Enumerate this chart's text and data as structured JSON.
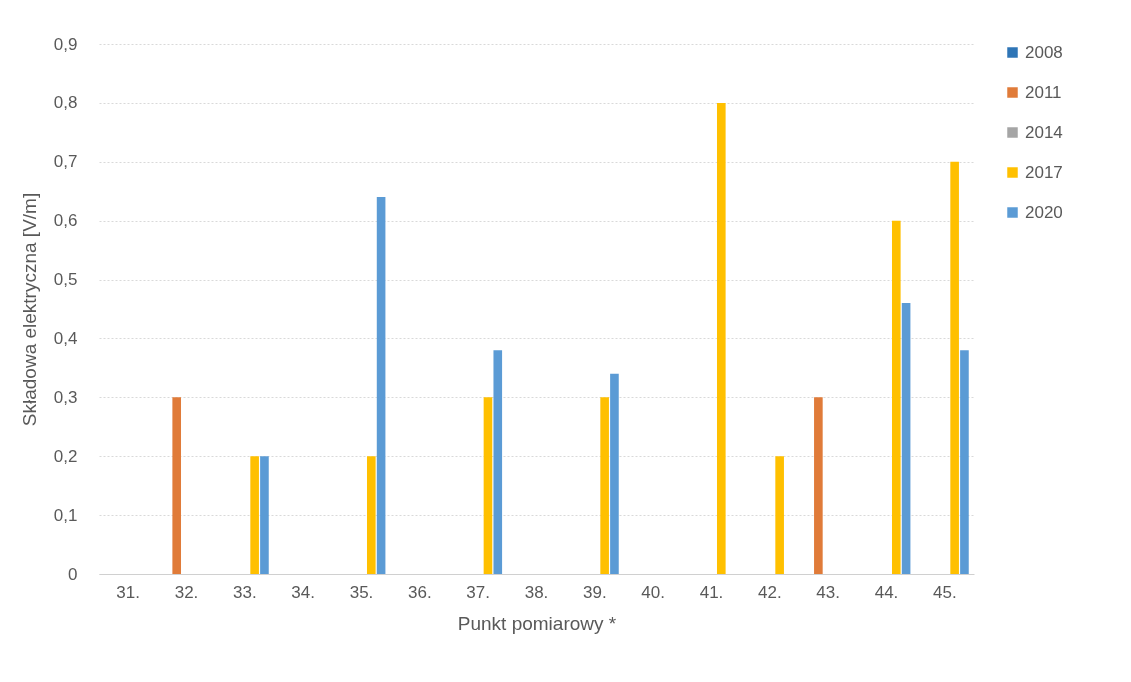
{
  "chart_data": {
    "type": "bar",
    "xlabel": "Punkt pomiarowy *",
    "ylabel": "Składowa elektryczna [V/m]",
    "categories": [
      "31.",
      "32.",
      "33.",
      "34.",
      "35.",
      "36.",
      "37.",
      "38.",
      "39.",
      "40.",
      "41.",
      "42.",
      "43.",
      "44.",
      "45."
    ],
    "series": [
      {
        "name": "2008",
        "color": "#2e75b6",
        "values": [
          null,
          null,
          null,
          null,
          null,
          null,
          null,
          null,
          null,
          null,
          null,
          null,
          null,
          null,
          null
        ]
      },
      {
        "name": "2011",
        "color": "#e07b39",
        "values": [
          null,
          0.3,
          null,
          null,
          null,
          null,
          null,
          null,
          null,
          null,
          null,
          null,
          0.3,
          null,
          null
        ]
      },
      {
        "name": "2014",
        "color": "#a5a5a5",
        "values": [
          null,
          null,
          null,
          null,
          null,
          null,
          null,
          null,
          null,
          null,
          null,
          null,
          null,
          null,
          null
        ]
      },
      {
        "name": "2017",
        "color": "#ffc000",
        "values": [
          null,
          null,
          0.2,
          null,
          0.2,
          null,
          0.3,
          null,
          0.3,
          null,
          0.8,
          0.2,
          null,
          0.6,
          0.7
        ]
      },
      {
        "name": "2020",
        "color": "#5b9bd5",
        "values": [
          null,
          null,
          0.2,
          null,
          0.64,
          null,
          0.38,
          null,
          0.34,
          null,
          null,
          null,
          null,
          0.46,
          0.38
        ]
      }
    ],
    "ylim": [
      0,
      0.9
    ],
    "yticks": [
      {
        "value": 0,
        "label": "0"
      },
      {
        "value": 0.1,
        "label": "0,1"
      },
      {
        "value": 0.2,
        "label": "0,2"
      },
      {
        "value": 0.3,
        "label": "0,3"
      },
      {
        "value": 0.4,
        "label": "0,4"
      },
      {
        "value": 0.5,
        "label": "0,5"
      },
      {
        "value": 0.6,
        "label": "0,6"
      },
      {
        "value": 0.7,
        "label": "0,7"
      },
      {
        "value": 0.8,
        "label": "0,8"
      },
      {
        "value": 0.9,
        "label": "0,9"
      }
    ],
    "grid": "y",
    "legend": "right"
  }
}
